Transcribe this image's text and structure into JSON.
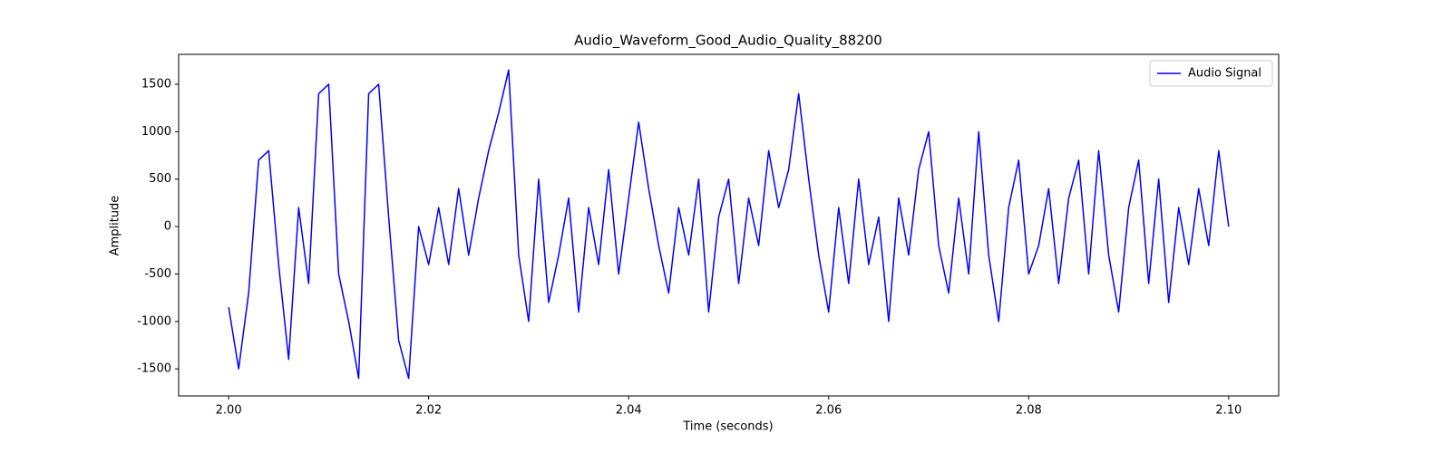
{
  "chart_data": {
    "type": "line",
    "title": "Audio_Waveform_Good_Audio_Quality_88200",
    "xlabel": "Time (seconds)",
    "ylabel": "Amplitude",
    "x": [
      2.0,
      2.001,
      2.002,
      2.003,
      2.004,
      2.005,
      2.006,
      2.007,
      2.008,
      2.009,
      2.01,
      2.011,
      2.012,
      2.013,
      2.014,
      2.015,
      2.016,
      2.017,
      2.018,
      2.019,
      2.02,
      2.021,
      2.022,
      2.023,
      2.024,
      2.025,
      2.026,
      2.027,
      2.028,
      2.029,
      2.03,
      2.031,
      2.032,
      2.033,
      2.034,
      2.035,
      2.036,
      2.037,
      2.038,
      2.039,
      2.04,
      2.041,
      2.042,
      2.043,
      2.044,
      2.045,
      2.046,
      2.047,
      2.048,
      2.049,
      2.05,
      2.051,
      2.052,
      2.053,
      2.054,
      2.055,
      2.056,
      2.057,
      2.058,
      2.059,
      2.06,
      2.061,
      2.062,
      2.063,
      2.064,
      2.065,
      2.066,
      2.067,
      2.068,
      2.069,
      2.07,
      2.071,
      2.072,
      2.073,
      2.074,
      2.075,
      2.076,
      2.077,
      2.078,
      2.079,
      2.08,
      2.081,
      2.082,
      2.083,
      2.084,
      2.085,
      2.086,
      2.087,
      2.088,
      2.089,
      2.09,
      2.091,
      2.092,
      2.093,
      2.094,
      2.095,
      2.096,
      2.097,
      2.098,
      2.099,
      2.1
    ],
    "series": [
      {
        "name": "Audio Signal",
        "color": "#0000ff",
        "values": [
          -850,
          -1500,
          -700,
          700,
          800,
          -400,
          -1400,
          200,
          -600,
          1400,
          1500,
          -500,
          -1000,
          -1600,
          1400,
          1500,
          100,
          -1200,
          -1600,
          0,
          -400,
          200,
          -400,
          400,
          -300,
          300,
          800,
          1200,
          1650,
          -300,
          -1000,
          500,
          -800,
          -300,
          300,
          -900,
          200,
          -400,
          600,
          -500,
          300,
          1100,
          400,
          -200,
          -700,
          200,
          -300,
          500,
          -900,
          100,
          500,
          -600,
          300,
          -200,
          800,
          200,
          600,
          1400,
          500,
          -300,
          -900,
          200,
          -600,
          500,
          -400,
          100,
          -1000,
          300,
          -300,
          600,
          1000,
          -200,
          -700,
          300,
          -500,
          1000,
          -300,
          -1000,
          200,
          700,
          -500,
          -200,
          400,
          -600,
          300,
          700,
          -500,
          800,
          -300,
          -900,
          200,
          700,
          -600,
          500,
          -800,
          200,
          -400,
          400,
          -200,
          800,
          0
        ]
      }
    ],
    "xlim": [
      1.995,
      2.105
    ],
    "xticks": [
      {
        "value": 2,
        "label": "2.00"
      },
      2.02,
      2.04,
      2.06,
      2.08,
      {
        "value": 2.1,
        "label": "2.10"
      }
    ],
    "ylim": [
      -1785,
      1815
    ],
    "yticks": [
      -1500,
      -1000,
      -500,
      0,
      500,
      1000,
      1500
    ],
    "legend": "upper right",
    "grid": false
  }
}
